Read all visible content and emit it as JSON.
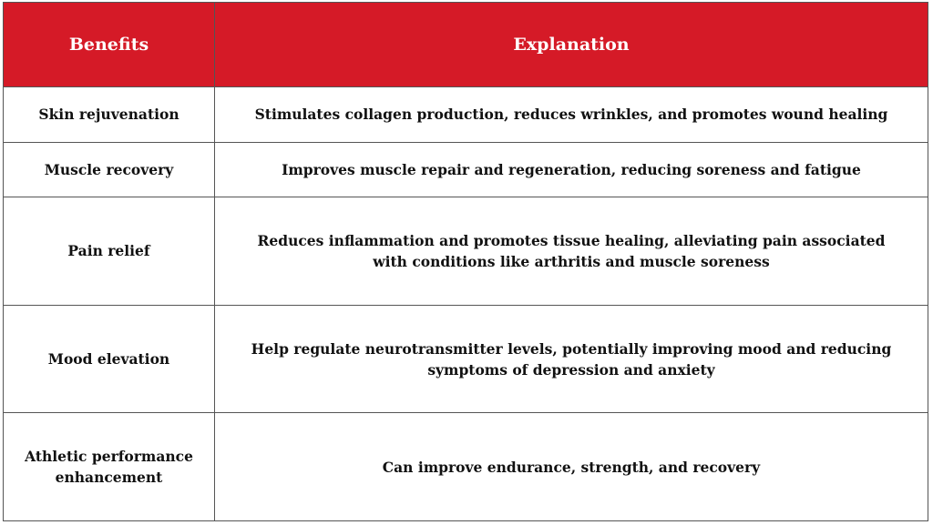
{
  "table": {
    "header": [
      "Benefits",
      "Explanation"
    ],
    "rows": [
      [
        "Skin rejuvenation",
        "Stimulates collagen production, reduces wrinkles, and promotes wound healing"
      ],
      [
        "Muscle recovery",
        "Improves muscle repair and regeneration, reducing soreness and fatigue"
      ],
      [
        "Pain relief",
        "Reduces inflammation and promotes tissue healing, alleviating pain associated with conditions like arthritis and muscle soreness"
      ],
      [
        "Mood elevation",
        "Help regulate neurotransmitter levels, potentially improving mood and reducing symptoms of depression and anxiety"
      ],
      [
        "Athletic performance enhancement",
        "Can improve endurance, strength, and recovery"
      ]
    ]
  }
}
